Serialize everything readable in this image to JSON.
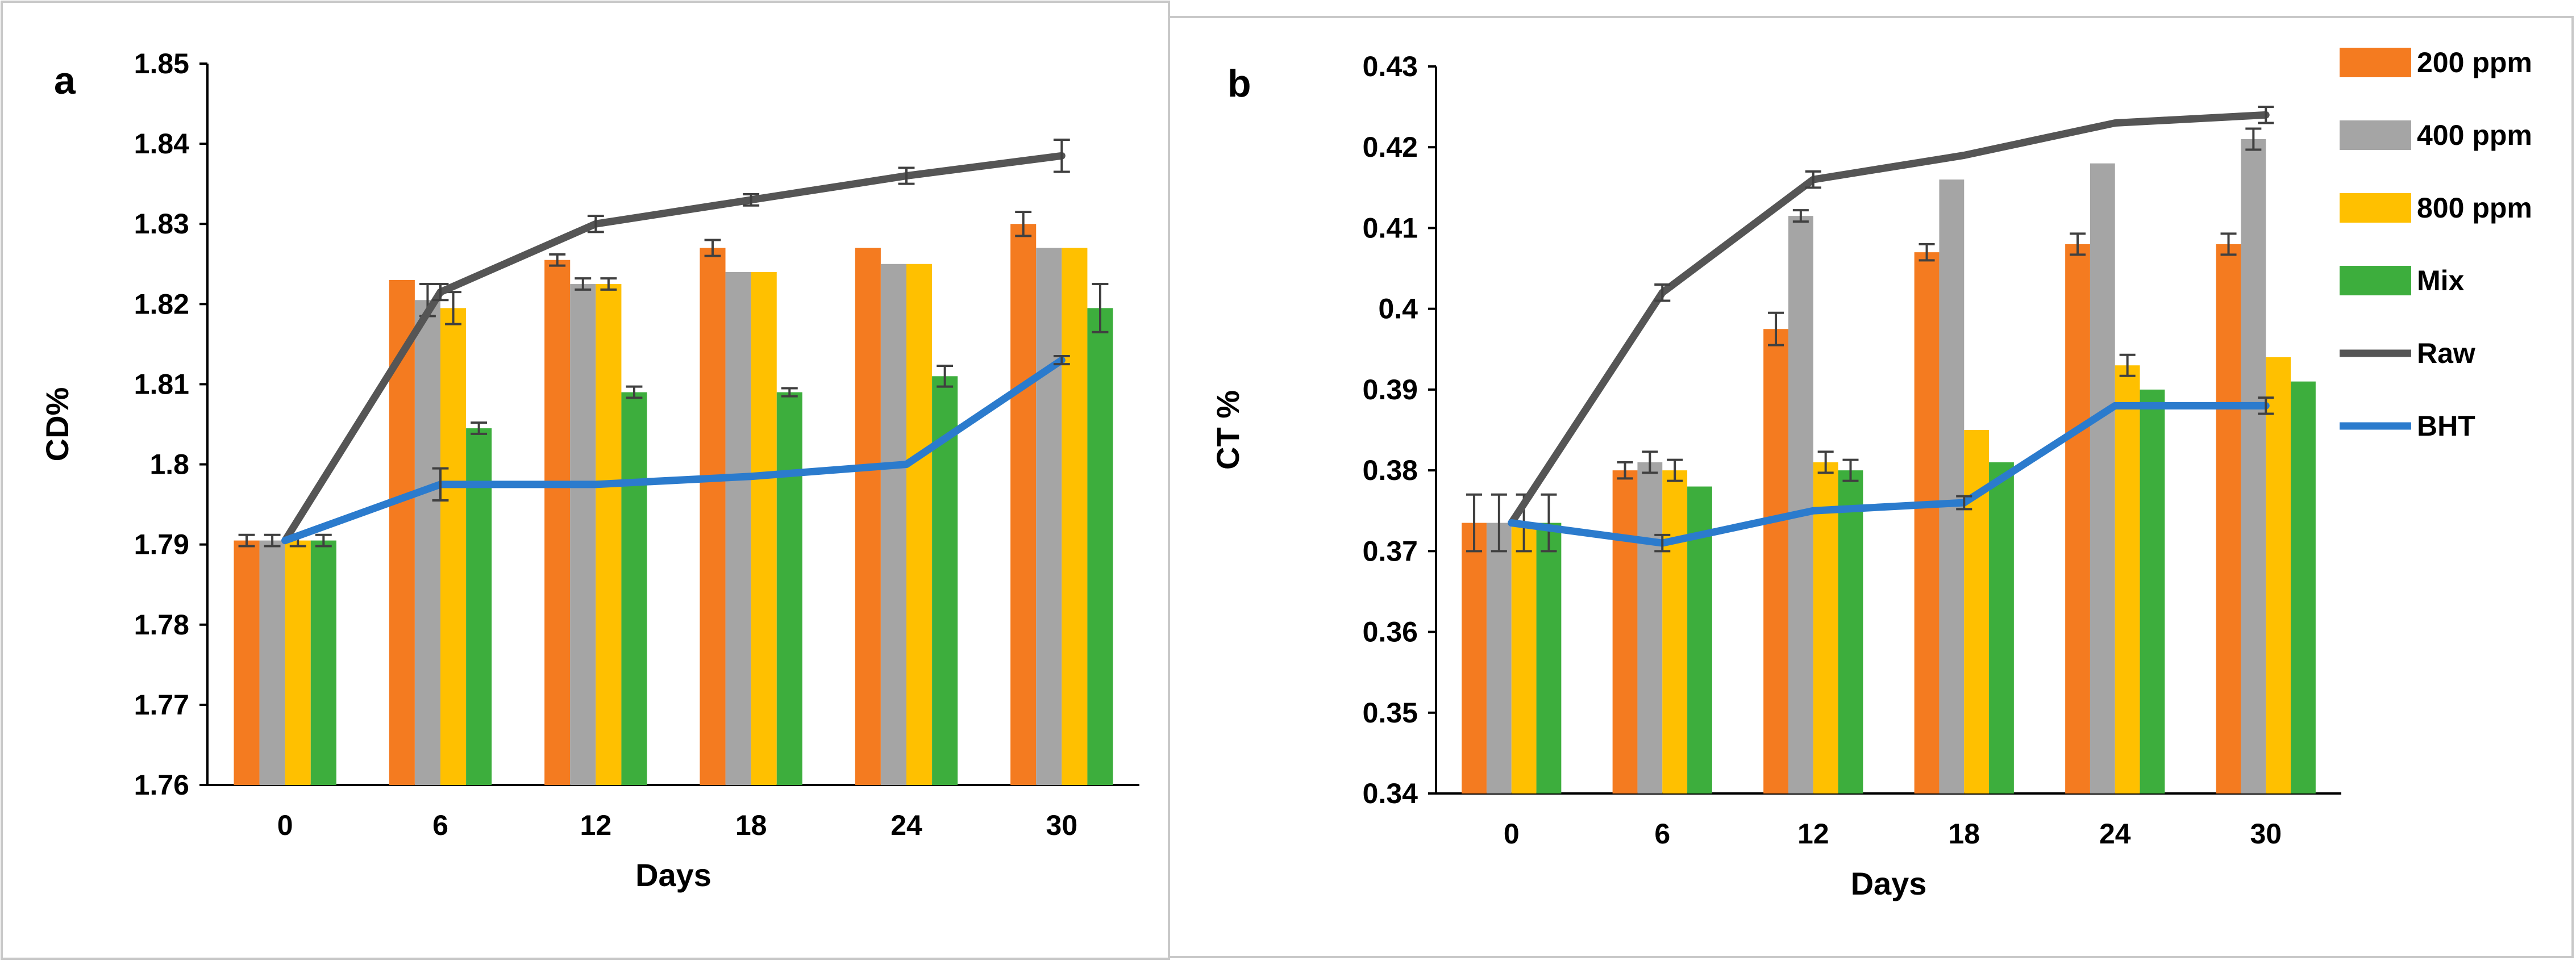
{
  "colors": {
    "s200": "#F47B20",
    "s400": "#A5A5A5",
    "s800": "#FFC000",
    "mix": "#3DAE3D",
    "raw": "#555555",
    "bht": "#2B7BCD",
    "axis": "#000000",
    "error": "#404040",
    "panel_border": "#C8C8C8"
  },
  "chart_data": [
    {
      "type": "bar",
      "panel": "a",
      "title": "",
      "xlabel": "Days",
      "ylabel": "CD%",
      "categories": [
        "0",
        "6",
        "12",
        "18",
        "24",
        "30"
      ],
      "ylim": [
        1.76,
        1.85
      ],
      "yticks": [
        "1.76",
        "1.77",
        "1.78",
        "1.79",
        "1.8",
        "1.81",
        "1.82",
        "1.83",
        "1.84",
        "1.85"
      ],
      "grid": false,
      "series": [
        {
          "name": "200 ppm",
          "kind": "bar",
          "color_key": "s200",
          "values": [
            1.7905,
            1.823,
            1.8255,
            1.827,
            1.827,
            1.83
          ],
          "errors": [
            0.0007,
            0,
            0.0007,
            0.001,
            0,
            0.0015
          ]
        },
        {
          "name": "400 ppm",
          "kind": "bar",
          "color_key": "s400",
          "values": [
            1.7905,
            1.8205,
            1.8225,
            1.824,
            1.825,
            1.827
          ],
          "errors": [
            0.0007,
            0.002,
            0.0007,
            0,
            0,
            0
          ]
        },
        {
          "name": "800 ppm",
          "kind": "bar",
          "color_key": "s800",
          "values": [
            1.7905,
            1.8195,
            1.8225,
            1.824,
            1.825,
            1.827
          ],
          "errors": [
            0.0007,
            0.002,
            0.0007,
            0,
            0,
            0
          ]
        },
        {
          "name": "Mix",
          "kind": "bar",
          "color_key": "mix",
          "values": [
            1.7905,
            1.8045,
            1.809,
            1.809,
            1.811,
            1.8195
          ],
          "errors": [
            0.0007,
            0.0007,
            0.0007,
            0.0005,
            0.0013,
            0.003
          ]
        },
        {
          "name": "Raw",
          "kind": "line",
          "color_key": "raw",
          "values": [
            1.7905,
            1.8215,
            1.83,
            1.833,
            1.836,
            1.8385
          ],
          "errors": [
            0,
            0.001,
            0.001,
            0.0007,
            0.001,
            0.002
          ]
        },
        {
          "name": "BHT",
          "kind": "line",
          "color_key": "bht",
          "values": [
            1.7905,
            1.7975,
            1.7975,
            1.7985,
            1.8,
            1.813
          ],
          "errors": [
            0,
            0.002,
            0,
            0,
            0,
            0.0005
          ]
        }
      ]
    },
    {
      "type": "bar",
      "panel": "b",
      "title": "",
      "xlabel": "Days",
      "ylabel": "CT %",
      "categories": [
        "0",
        "6",
        "12",
        "18",
        "24",
        "30"
      ],
      "ylim": [
        0.34,
        0.43
      ],
      "yticks": [
        "0.34",
        "0.35",
        "0.36",
        "0.37",
        "0.38",
        "0.39",
        "0.4",
        "0.41",
        "0.42",
        "0.43"
      ],
      "grid": false,
      "legend_position": "right",
      "series": [
        {
          "name": "200 ppm",
          "kind": "bar",
          "color_key": "s200",
          "values": [
            0.3735,
            0.38,
            0.3975,
            0.407,
            0.408,
            0.408
          ],
          "errors": [
            0.0035,
            0.001,
            0.002,
            0.001,
            0.0013,
            0.0013
          ]
        },
        {
          "name": "400 ppm",
          "kind": "bar",
          "color_key": "s400",
          "values": [
            0.3735,
            0.381,
            0.4115,
            0.416,
            0.418,
            0.421
          ],
          "errors": [
            0.0035,
            0.0013,
            0.0007,
            0,
            0,
            0.0013
          ]
        },
        {
          "name": "800 ppm",
          "kind": "bar",
          "color_key": "s800",
          "values": [
            0.3735,
            0.38,
            0.381,
            0.385,
            0.393,
            0.394
          ],
          "errors": [
            0.0035,
            0.0013,
            0.0013,
            0,
            0.0013,
            0
          ]
        },
        {
          "name": "Mix",
          "kind": "bar",
          "color_key": "mix",
          "values": [
            0.3735,
            0.378,
            0.38,
            0.381,
            0.39,
            0.391
          ],
          "errors": [
            0.0035,
            0,
            0.0013,
            0,
            0,
            0
          ]
        },
        {
          "name": "Raw",
          "kind": "line",
          "color_key": "raw",
          "values": [
            0.3735,
            0.402,
            0.416,
            0.419,
            0.423,
            0.424
          ],
          "errors": [
            0,
            0.001,
            0.001,
            0,
            0,
            0.001
          ]
        },
        {
          "name": "BHT",
          "kind": "line",
          "color_key": "bht",
          "values": [
            0.3735,
            0.371,
            0.375,
            0.376,
            0.388,
            0.388
          ],
          "errors": [
            0,
            0.001,
            0,
            0.0008,
            0,
            0.001
          ]
        }
      ]
    }
  ]
}
